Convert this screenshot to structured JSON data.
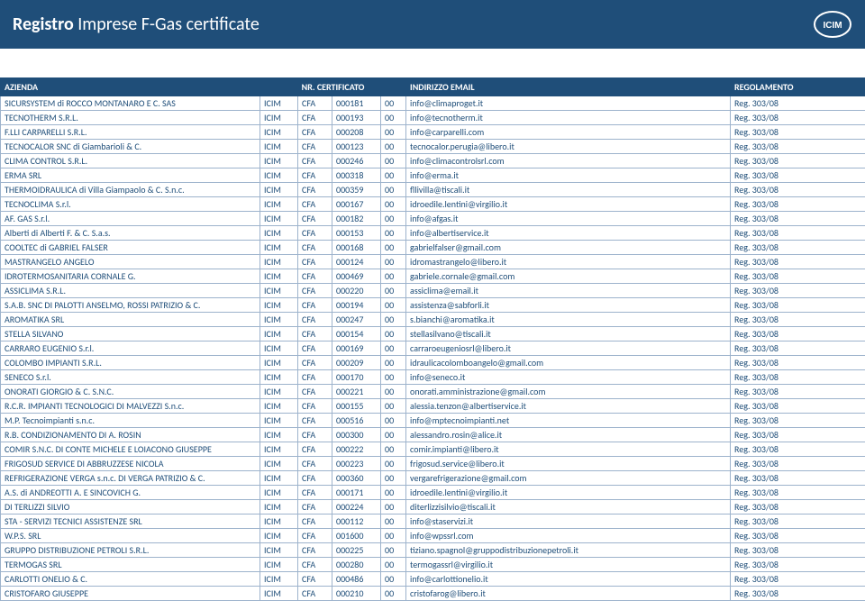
{
  "header": {
    "title_strong": "Registro",
    "title_rest": "Imprese F-Gas certificate",
    "logo_label": "ICIM"
  },
  "table": {
    "columns": {
      "azienda": "AZIENDA",
      "nr_cert": "NR. CERTIFICATO",
      "email": "INDIRIZZO EMAIL",
      "regolamento": "REGOLAMENTO"
    },
    "rows": [
      {
        "a": "SICURSYSTEM di ROCCO MONTANARO E C. SAS",
        "b": "ICIM",
        "c": "CFA",
        "d": "000181",
        "e": "00",
        "f": "info@climaproget.it",
        "g": "Reg. 303/08"
      },
      {
        "a": "TECNOTHERM S.R.L.",
        "b": "ICIM",
        "c": "CFA",
        "d": "000193",
        "e": "00",
        "f": "info@tecnotherm.it",
        "g": "Reg. 303/08"
      },
      {
        "a": "F.LLI CARPARELLI S.R.L.",
        "b": "ICIM",
        "c": "CFA",
        "d": "000208",
        "e": "00",
        "f": "info@carparelli.com",
        "g": "Reg. 303/08"
      },
      {
        "a": "TECNOCALOR SNC di Giambarioli & C.",
        "b": "ICIM",
        "c": "CFA",
        "d": "000123",
        "e": "00",
        "f": "tecnocalor.perugia@libero.it",
        "g": "Reg. 303/08"
      },
      {
        "a": "CLIMA CONTROL S.R.L.",
        "b": "ICIM",
        "c": "CFA",
        "d": "000246",
        "e": "00",
        "f": "info@climacontrolsrl.com",
        "g": "Reg. 303/08"
      },
      {
        "a": "ERMA SRL",
        "b": "ICIM",
        "c": "CFA",
        "d": "000318",
        "e": "00",
        "f": "info@erma.it",
        "g": "Reg. 303/08"
      },
      {
        "a": "THERMOIDRAULICA di Villa Giampaolo & C. S.n.c.",
        "b": "ICIM",
        "c": "CFA",
        "d": "000359",
        "e": "00",
        "f": "fllivilla@tiscali.it",
        "g": "Reg. 303/08"
      },
      {
        "a": "TECNOCLIMA S.r.l.",
        "b": "ICIM",
        "c": "CFA",
        "d": "000167",
        "e": "00",
        "f": "idroedile.lentini@virgilio.it",
        "g": "Reg. 303/08"
      },
      {
        "a": "AF. GAS S.r.l.",
        "b": "ICIM",
        "c": "CFA",
        "d": "000182",
        "e": "00",
        "f": "info@afgas.it",
        "g": "Reg. 303/08"
      },
      {
        "a": "Alberti di Alberti F. & C. S.a.s.",
        "b": "ICIM",
        "c": "CFA",
        "d": "000153",
        "e": "00",
        "f": "info@albertiservice.it",
        "g": "Reg. 303/08"
      },
      {
        "a": "COOLTEC di GABRIEL FALSER",
        "b": "ICIM",
        "c": "CFA",
        "d": "000168",
        "e": "00",
        "f": "gabrielfalser@gmail.com",
        "g": "Reg. 303/08"
      },
      {
        "a": "MASTRANGELO ANGELO",
        "b": "ICIM",
        "c": "CFA",
        "d": "000124",
        "e": "00",
        "f": "idromastrangelo@libero.it",
        "g": "Reg. 303/08"
      },
      {
        "a": "IDROTERMOSANITARIA CORNALE G.",
        "b": "ICIM",
        "c": "CFA",
        "d": "000469",
        "e": "00",
        "f": "gabriele.cornale@gmail.com",
        "g": "Reg. 303/08"
      },
      {
        "a": "ASSICLIMA S.R.L.",
        "b": "ICIM",
        "c": "CFA",
        "d": "000220",
        "e": "00",
        "f": "assiclima@email.it",
        "g": "Reg. 303/08"
      },
      {
        "a": "S.A.B. SNC DI PALOTTI ANSELMO, ROSSI PATRIZIO & C.",
        "b": "ICIM",
        "c": "CFA",
        "d": "000194",
        "e": "00",
        "f": "assistenza@sabforli.it",
        "g": "Reg. 303/08"
      },
      {
        "a": "AROMATIKA SRL",
        "b": "ICIM",
        "c": "CFA",
        "d": "000247",
        "e": "00",
        "f": "s.bianchi@aromatika.it",
        "g": "Reg. 303/08"
      },
      {
        "a": "STELLA SILVANO",
        "b": "ICIM",
        "c": "CFA",
        "d": "000154",
        "e": "00",
        "f": "stellasilvano@tiscali.it",
        "g": "Reg. 303/08"
      },
      {
        "a": "CARRARO EUGENIO S.r.l.",
        "b": "ICIM",
        "c": "CFA",
        "d": "000169",
        "e": "00",
        "f": "carraroeugeniosrl@libero.it",
        "g": "Reg. 303/08"
      },
      {
        "a": "COLOMBO IMPIANTI S.R.L.",
        "b": "ICIM",
        "c": "CFA",
        "d": "000209",
        "e": "00",
        "f": "idraulicacolomboangelo@gmail.com",
        "g": "Reg. 303/08"
      },
      {
        "a": "SENECO S.r.l.",
        "b": "ICIM",
        "c": "CFA",
        "d": "000170",
        "e": "00",
        "f": "info@seneco.it",
        "g": "Reg. 303/08"
      },
      {
        "a": "ONORATI GIORGIO & C. S.N.C.",
        "b": "ICIM",
        "c": "CFA",
        "d": "000221",
        "e": "00",
        "f": "onorati.amministrazione@gmail.com",
        "g": "Reg. 303/08"
      },
      {
        "a": "R.C.R. IMPIANTI TECNOLOGICI DI MALVEZZI S.n.c.",
        "b": "ICIM",
        "c": "CFA",
        "d": "000155",
        "e": "00",
        "f": "alessia.tenzon@albertiservice.it",
        "g": "Reg. 303/08"
      },
      {
        "a": "M.P. Tecnoimpianti s.n.c.",
        "b": "ICIM",
        "c": "CFA",
        "d": "000516",
        "e": "00",
        "f": "info@mptecnoimpianti.net",
        "g": "Reg. 303/08"
      },
      {
        "a": "R.B. CONDIZIONAMENTO DI A. ROSIN",
        "b": "ICIM",
        "c": "CFA",
        "d": "000300",
        "e": "00",
        "f": "alessandro.rosin@alice.it",
        "g": "Reg. 303/08"
      },
      {
        "a": "COMIR S.N.C. DI CONTE MICHELE E LOIACONO GIUSEPPE",
        "b": "ICIM",
        "c": "CFA",
        "d": "000222",
        "e": "00",
        "f": "comir.impianti@libero.it",
        "g": "Reg. 303/08"
      },
      {
        "a": "FRIGOSUD SERVICE DI ABBRUZZESE NICOLA",
        "b": "ICIM",
        "c": "CFA",
        "d": "000223",
        "e": "00",
        "f": "frigosud.service@libero.it",
        "g": "Reg. 303/08"
      },
      {
        "a": "REFRIGERAZIONE VERGA s.n.c. DI VERGA PATRIZIO & C.",
        "b": "ICIM",
        "c": "CFA",
        "d": "000360",
        "e": "00",
        "f": "vergarefrigerazione@gmail.com",
        "g": "Reg. 303/08"
      },
      {
        "a": "A.S. di ANDREOTTI A. E SINCOVICH G.",
        "b": "ICIM",
        "c": "CFA",
        "d": "000171",
        "e": "00",
        "f": "idroedile.lentini@virgilio.it",
        "g": "Reg. 303/08"
      },
      {
        "a": "DI TERLIZZI SILVIO",
        "b": "ICIM",
        "c": "CFA",
        "d": "000224",
        "e": "00",
        "f": "diterlizzisilvio@tiscali.it",
        "g": "Reg. 303/08"
      },
      {
        "a": "STA - SERVIZI TECNICI ASSISTENZE SRL",
        "b": "ICIM",
        "c": "CFA",
        "d": "000112",
        "e": "00",
        "f": "info@staservizi.it",
        "g": "Reg. 303/08"
      },
      {
        "a": "W.P.S. SRL",
        "b": "ICIM",
        "c": "CFA",
        "d": "001600",
        "e": "00",
        "f": "info@wpssrl.com",
        "g": "Reg. 303/08"
      },
      {
        "a": "GRUPPO DISTRIBUZIONE PETROLI S.R.L.",
        "b": "ICIM",
        "c": "CFA",
        "d": "000225",
        "e": "00",
        "f": "tiziano.spagnol@gruppodistribuzionepetroli.it",
        "g": "Reg. 303/08"
      },
      {
        "a": "TERMOGAS SRL",
        "b": "ICIM",
        "c": "CFA",
        "d": "000280",
        "e": "00",
        "f": "termogassrl@virgilio.it",
        "g": "Reg. 303/08"
      },
      {
        "a": "CARLOTTI ONELIO & C.",
        "b": "ICIM",
        "c": "CFA",
        "d": "000486",
        "e": "00",
        "f": "info@carlottionelio.it",
        "g": "Reg. 303/08"
      },
      {
        "a": "CRISTOFARO GIUSEPPE",
        "b": "ICIM",
        "c": "CFA",
        "d": "000210",
        "e": "00",
        "f": "cristofarog@libero.it",
        "g": "Reg. 303/08"
      }
    ]
  }
}
